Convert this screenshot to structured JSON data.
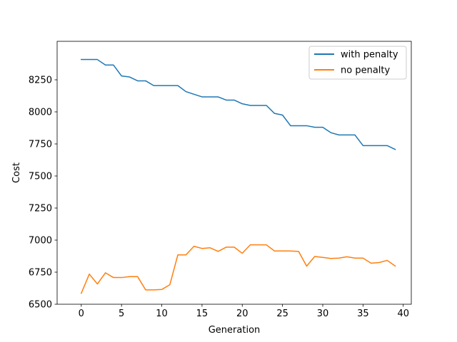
{
  "chart_data": {
    "type": "line",
    "title": "",
    "xlabel": "Generation",
    "ylabel": "Cost",
    "xlim": [
      -3.0,
      41.0
    ],
    "ylim": [
      6500,
      8550
    ],
    "xticks": [
      0,
      5,
      10,
      15,
      20,
      25,
      30,
      35,
      40
    ],
    "yticks": [
      6500,
      6750,
      7000,
      7250,
      7500,
      7750,
      8000,
      8250
    ],
    "grid": false,
    "legend_position": "top-right",
    "x": [
      0,
      1,
      2,
      3,
      4,
      5,
      6,
      7,
      8,
      9,
      10,
      11,
      12,
      13,
      14,
      15,
      16,
      17,
      18,
      19,
      20,
      21,
      22,
      23,
      24,
      25,
      26,
      27,
      28,
      29,
      30,
      31,
      32,
      33,
      34,
      35,
      36,
      37,
      38,
      39
    ],
    "series": [
      {
        "name": "with penalty",
        "color": "#1f77b4",
        "values": [
          8408,
          8408,
          8408,
          8365,
          8365,
          8280,
          8272,
          8242,
          8242,
          8205,
          8205,
          8205,
          8205,
          8158,
          8137,
          8117,
          8117,
          8117,
          8092,
          8092,
          8063,
          8050,
          8050,
          8050,
          7988,
          7975,
          7892,
          7892,
          7892,
          7880,
          7880,
          7838,
          7820,
          7820,
          7820,
          7737,
          7737,
          7737,
          7737,
          7707
        ]
      },
      {
        "name": "no penalty",
        "color": "#ff7f0e",
        "values": [
          6585,
          6735,
          6658,
          6745,
          6708,
          6708,
          6715,
          6715,
          6612,
          6612,
          6615,
          6652,
          6885,
          6885,
          6952,
          6935,
          6940,
          6912,
          6945,
          6945,
          6897,
          6963,
          6963,
          6963,
          6915,
          6915,
          6915,
          6912,
          6797,
          6872,
          6865,
          6857,
          6860,
          6870,
          6860,
          6860,
          6820,
          6825,
          6842,
          6798
        ]
      }
    ]
  }
}
